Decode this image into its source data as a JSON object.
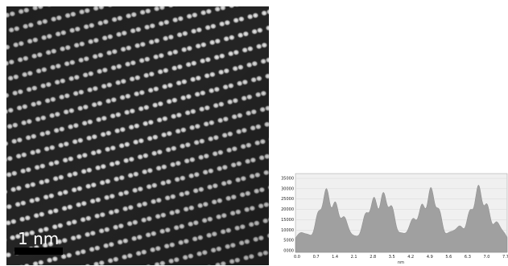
{
  "micrograph": {
    "scale_bar_label": "1 nm",
    "icon": "atomic-lattice-micrograph"
  },
  "profile": {
    "y_tick_labels": [
      "35000",
      "30000",
      "25000",
      "20000",
      "15000",
      "10000",
      "5000",
      "0000"
    ],
    "x_tick_labels": [
      "0.0",
      "0.7",
      "1.4",
      "2.1",
      "2.8",
      "3.5",
      "4.2",
      "4.9",
      "5.6",
      "6.3",
      "7.0",
      "7.7"
    ],
    "x_axis_label": "nm",
    "colors": {
      "fill": "#a0a0a0",
      "background": "#f0f0f0",
      "grid": "#d9d9d9"
    }
  }
}
